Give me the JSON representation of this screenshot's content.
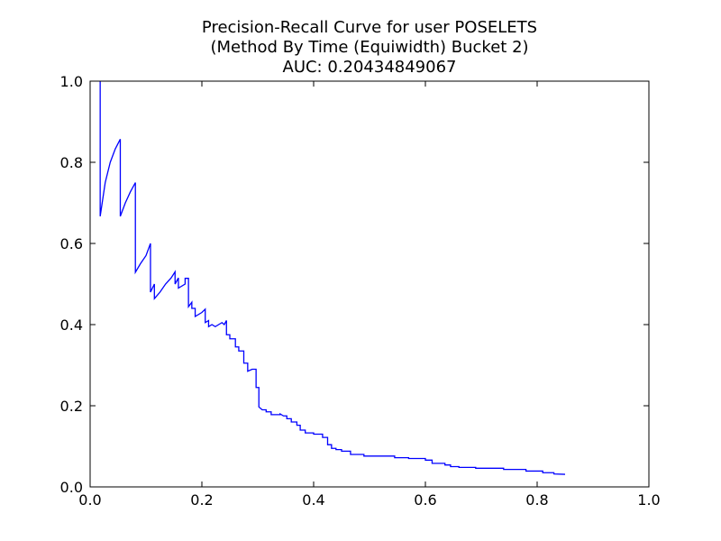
{
  "chart_data": {
    "type": "line",
    "title": [
      "Precision-Recall Curve for user POSELETS",
      "(Method By Time (Equiwidth) Bucket 2)",
      "AUC: 0.20434849067"
    ],
    "xlabel": "",
    "ylabel": "",
    "xlim": [
      0.0,
      1.0
    ],
    "ylim": [
      0.0,
      1.0
    ],
    "xticks": [
      "0.0",
      "0.2",
      "0.4",
      "0.6",
      "0.8",
      "1.0"
    ],
    "yticks": [
      "0.0",
      "0.2",
      "0.4",
      "0.6",
      "0.8",
      "1.0"
    ],
    "grid": false,
    "color": "#0000ff",
    "series": [
      {
        "points": [
          [
            0.018,
            1.0
          ],
          [
            0.018,
            0.667
          ],
          [
            0.027,
            0.75
          ],
          [
            0.036,
            0.8
          ],
          [
            0.045,
            0.833
          ],
          [
            0.054,
            0.857
          ],
          [
            0.054,
            0.667
          ],
          [
            0.063,
            0.7
          ],
          [
            0.072,
            0.727
          ],
          [
            0.081,
            0.75
          ],
          [
            0.081,
            0.529
          ],
          [
            0.09,
            0.55
          ],
          [
            0.1,
            0.57
          ],
          [
            0.108,
            0.6
          ],
          [
            0.108,
            0.48
          ],
          [
            0.115,
            0.5
          ],
          [
            0.115,
            0.464
          ],
          [
            0.125,
            0.48
          ],
          [
            0.135,
            0.5
          ],
          [
            0.145,
            0.515
          ],
          [
            0.152,
            0.53
          ],
          [
            0.152,
            0.5
          ],
          [
            0.158,
            0.515
          ],
          [
            0.158,
            0.49
          ],
          [
            0.17,
            0.5
          ],
          [
            0.17,
            0.514
          ],
          [
            0.176,
            0.514
          ],
          [
            0.176,
            0.444
          ],
          [
            0.182,
            0.455
          ],
          [
            0.182,
            0.44
          ],
          [
            0.188,
            0.44
          ],
          [
            0.188,
            0.42
          ],
          [
            0.2,
            0.43
          ],
          [
            0.206,
            0.438
          ],
          [
            0.206,
            0.405
          ],
          [
            0.212,
            0.41
          ],
          [
            0.212,
            0.395
          ],
          [
            0.218,
            0.4
          ],
          [
            0.224,
            0.395
          ],
          [
            0.23,
            0.4
          ],
          [
            0.236,
            0.405
          ],
          [
            0.24,
            0.4
          ],
          [
            0.244,
            0.41
          ],
          [
            0.244,
            0.375
          ],
          [
            0.25,
            0.375
          ],
          [
            0.25,
            0.365
          ],
          [
            0.26,
            0.365
          ],
          [
            0.26,
            0.345
          ],
          [
            0.266,
            0.345
          ],
          [
            0.266,
            0.335
          ],
          [
            0.275,
            0.335
          ],
          [
            0.275,
            0.305
          ],
          [
            0.282,
            0.305
          ],
          [
            0.282,
            0.285
          ],
          [
            0.29,
            0.29
          ],
          [
            0.297,
            0.29
          ],
          [
            0.297,
            0.245
          ],
          [
            0.302,
            0.245
          ],
          [
            0.302,
            0.197
          ],
          [
            0.308,
            0.19
          ],
          [
            0.315,
            0.19
          ],
          [
            0.315,
            0.185
          ],
          [
            0.324,
            0.185
          ],
          [
            0.324,
            0.178
          ],
          [
            0.34,
            0.178
          ],
          [
            0.34,
            0.18
          ],
          [
            0.346,
            0.175
          ],
          [
            0.352,
            0.175
          ],
          [
            0.352,
            0.168
          ],
          [
            0.36,
            0.168
          ],
          [
            0.36,
            0.16
          ],
          [
            0.37,
            0.16
          ],
          [
            0.37,
            0.152
          ],
          [
            0.376,
            0.152
          ],
          [
            0.376,
            0.14
          ],
          [
            0.385,
            0.14
          ],
          [
            0.385,
            0.133
          ],
          [
            0.4,
            0.133
          ],
          [
            0.4,
            0.13
          ],
          [
            0.416,
            0.13
          ],
          [
            0.416,
            0.122
          ],
          [
            0.425,
            0.122
          ],
          [
            0.425,
            0.104
          ],
          [
            0.432,
            0.104
          ],
          [
            0.432,
            0.095
          ],
          [
            0.44,
            0.095
          ],
          [
            0.44,
            0.092
          ],
          [
            0.45,
            0.092
          ],
          [
            0.45,
            0.088
          ],
          [
            0.466,
            0.088
          ],
          [
            0.466,
            0.08
          ],
          [
            0.49,
            0.08
          ],
          [
            0.49,
            0.076
          ],
          [
            0.545,
            0.076
          ],
          [
            0.545,
            0.072
          ],
          [
            0.57,
            0.072
          ],
          [
            0.57,
            0.07
          ],
          [
            0.6,
            0.07
          ],
          [
            0.6,
            0.066
          ],
          [
            0.612,
            0.066
          ],
          [
            0.612,
            0.058
          ],
          [
            0.635,
            0.058
          ],
          [
            0.635,
            0.054
          ],
          [
            0.645,
            0.054
          ],
          [
            0.645,
            0.05
          ],
          [
            0.66,
            0.05
          ],
          [
            0.66,
            0.048
          ],
          [
            0.69,
            0.048
          ],
          [
            0.69,
            0.046
          ],
          [
            0.74,
            0.046
          ],
          [
            0.74,
            0.043
          ],
          [
            0.78,
            0.043
          ],
          [
            0.78,
            0.039
          ],
          [
            0.81,
            0.039
          ],
          [
            0.81,
            0.035
          ],
          [
            0.83,
            0.035
          ],
          [
            0.83,
            0.032
          ],
          [
            0.85,
            0.031
          ]
        ]
      }
    ]
  }
}
